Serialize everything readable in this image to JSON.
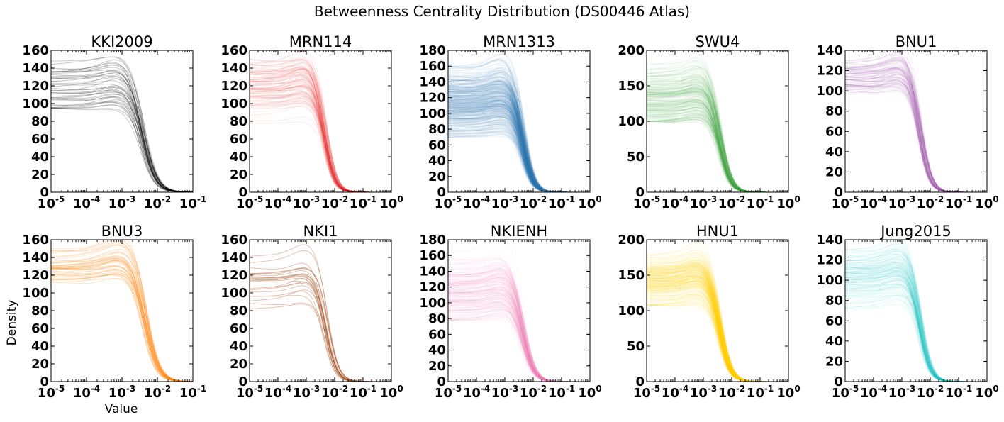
{
  "figure": {
    "title": "Betweenness Centrality Distribution (DS00446 Atlas)",
    "xlabel": "Value",
    "ylabel": "Density"
  },
  "chart_data": [
    {
      "type": "line",
      "title": "KKI2009",
      "color": "#000000",
      "x_scale": "log",
      "xlim": [
        "1e-5",
        "1e-1"
      ],
      "x_ticks": [
        "10^-5",
        "10^-4",
        "10^-3",
        "10^-2",
        "10^-1"
      ],
      "ylim": [
        0,
        160
      ],
      "y_ticks": [
        0,
        20,
        40,
        60,
        80,
        100,
        120,
        140,
        160
      ],
      "n_curves": 42,
      "plateau_range": [
        95,
        148
      ],
      "plateau_mean": 118,
      "decay_center": 0.004,
      "decay_end": 0.08,
      "series": []
    },
    {
      "type": "line",
      "title": "MRN114",
      "color": "#e41a1c",
      "x_scale": "log",
      "xlim": [
        "1e-5",
        "1e0"
      ],
      "x_ticks": [
        "10^-5",
        "10^-4",
        "10^-3",
        "10^-2",
        "10^-1",
        "10^0"
      ],
      "ylim": [
        0,
        160
      ],
      "y_ticks": [
        0,
        20,
        40,
        60,
        80,
        100,
        120,
        140,
        160
      ],
      "n_curves": 110,
      "plateau_range": [
        78,
        150
      ],
      "plateau_mean": 118,
      "decay_center": 0.0045,
      "decay_end": 0.08,
      "series": []
    },
    {
      "type": "line",
      "title": "MRN1313",
      "color": "#377eb8",
      "x_scale": "log",
      "xlim": [
        "1e-5",
        "1e0"
      ],
      "x_ticks": [
        "10^-5",
        "10^-4",
        "10^-3",
        "10^-2",
        "10^-1",
        "10^0"
      ],
      "ylim": [
        0,
        180
      ],
      "y_ticks": [
        0,
        20,
        40,
        60,
        80,
        100,
        120,
        140,
        160,
        180
      ],
      "n_curves": 450,
      "plateau_range": [
        70,
        160
      ],
      "plateau_mean": 112,
      "decay_center": 0.0045,
      "decay_end": 0.08,
      "series": []
    },
    {
      "type": "line",
      "title": "SWU4",
      "color": "#4daf4a",
      "x_scale": "log",
      "xlim": [
        "1e-5",
        "1e0"
      ],
      "x_ticks": [
        "10^-5",
        "10^-4",
        "10^-3",
        "10^-2",
        "10^-1",
        "10^0"
      ],
      "ylim": [
        0,
        200
      ],
      "y_ticks": [
        0,
        50,
        100,
        150,
        200
      ],
      "n_curves": 230,
      "plateau_range": [
        100,
        182
      ],
      "plateau_mean": 133,
      "decay_center": 0.004,
      "decay_end": 0.08,
      "series": []
    },
    {
      "type": "line",
      "title": "BNU1",
      "color": "#984ea3",
      "x_scale": "log",
      "xlim": [
        "1e-5",
        "1e0"
      ],
      "x_ticks": [
        "10^-5",
        "10^-4",
        "10^-3",
        "10^-2",
        "10^-1",
        "10^0"
      ],
      "ylim": [
        0,
        140
      ],
      "y_ticks": [
        0,
        20,
        40,
        60,
        80,
        100,
        120,
        140
      ],
      "n_curves": 100,
      "plateau_range": [
        98,
        130
      ],
      "plateau_mean": 115,
      "decay_center": 0.0045,
      "decay_end": 0.08,
      "series": []
    },
    {
      "type": "line",
      "title": "BNU3",
      "color": "#ff7f00",
      "x_scale": "log",
      "xlim": [
        "1e-5",
        "1e-1"
      ],
      "x_ticks": [
        "10^-5",
        "10^-4",
        "10^-3",
        "10^-2",
        "10^-1"
      ],
      "ylim": [
        0,
        160
      ],
      "y_ticks": [
        0,
        20,
        40,
        60,
        80,
        100,
        120,
        140,
        160
      ],
      "n_curves": 46,
      "plateau_range": [
        105,
        150
      ],
      "plateau_mean": 128,
      "decay_center": 0.0045,
      "decay_end": 0.08,
      "series": []
    },
    {
      "type": "line",
      "title": "NKI1",
      "color": "#a65628",
      "x_scale": "log",
      "xlim": [
        "1e-5",
        "1e0"
      ],
      "x_ticks": [
        "10^-5",
        "10^-4",
        "10^-3",
        "10^-2",
        "10^-1",
        "10^0"
      ],
      "ylim": [
        0,
        160
      ],
      "y_ticks": [
        0,
        20,
        40,
        60,
        80,
        100,
        120,
        140,
        160
      ],
      "n_curves": 24,
      "plateau_range": [
        80,
        150
      ],
      "plateau_mean": 115,
      "decay_center": 0.005,
      "decay_end": 0.1,
      "series": []
    },
    {
      "type": "line",
      "title": "NKIENH",
      "color": "#f781bf",
      "x_scale": "log",
      "xlim": [
        "1e-5",
        "1e0"
      ],
      "x_ticks": [
        "10^-5",
        "10^-4",
        "10^-3",
        "10^-2",
        "10^-1",
        "10^0"
      ],
      "ylim": [
        0,
        180
      ],
      "y_ticks": [
        0,
        20,
        40,
        60,
        80,
        100,
        120,
        140,
        160,
        180
      ],
      "n_curves": 190,
      "plateau_range": [
        78,
        165
      ],
      "plateau_mean": 112,
      "decay_center": 0.0045,
      "decay_end": 0.1,
      "series": []
    },
    {
      "type": "line",
      "title": "HNU1",
      "color": "#ffd700",
      "x_scale": "log",
      "xlim": [
        "1e-5",
        "1e0"
      ],
      "x_ticks": [
        "10^-5",
        "10^-4",
        "10^-3",
        "10^-2",
        "10^-1",
        "10^0"
      ],
      "ylim": [
        0,
        200
      ],
      "y_ticks": [
        0,
        50,
        100,
        150,
        200
      ],
      "n_curves": 300,
      "plateau_range": [
        108,
        178
      ],
      "plateau_mean": 140,
      "decay_center": 0.0038,
      "decay_end": 0.08,
      "series": []
    },
    {
      "type": "line",
      "title": "Jung2015",
      "color": "#17c5c8",
      "x_scale": "log",
      "xlim": [
        "1e-5",
        "1e0"
      ],
      "x_ticks": [
        "10^-5",
        "10^-4",
        "10^-3",
        "10^-2",
        "10^-1",
        "10^0"
      ],
      "ylim": [
        0,
        140
      ],
      "y_ticks": [
        0,
        20,
        40,
        60,
        80,
        100,
        120,
        140
      ],
      "n_curves": 150,
      "plateau_range": [
        72,
        130
      ],
      "plateau_mean": 102,
      "decay_center": 0.0045,
      "decay_end": 0.08,
      "series": []
    }
  ]
}
